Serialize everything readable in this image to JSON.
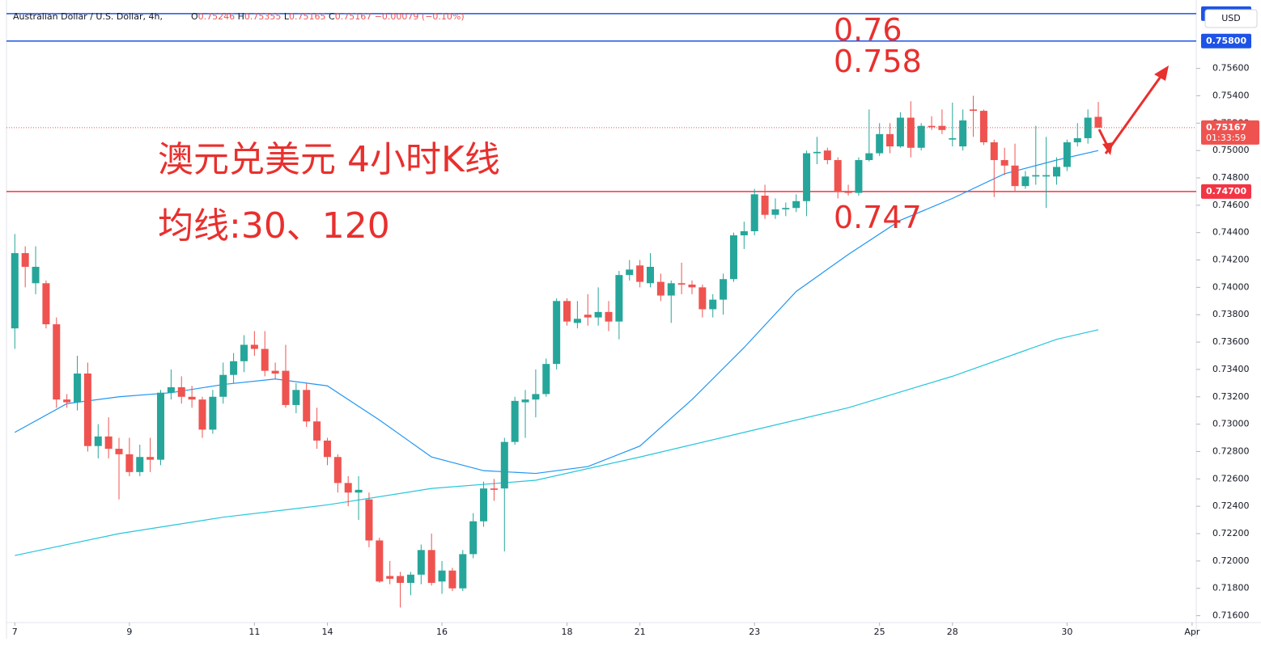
{
  "chart_data": {
    "type": "candlestick",
    "header": {
      "symbol": "Australian Dollar / U.S. Dollar, 4h,",
      "ohlc": [
        {
          "key": "O",
          "value": "0.75246"
        },
        {
          "key": "H",
          "value": "0.75355"
        },
        {
          "key": "L",
          "value": "0.75165"
        },
        {
          "key": "C",
          "value": "0.75167"
        }
      ],
      "change": "−0.00079 (−0.10%)"
    },
    "currency": "USD",
    "annotations": [
      "澳元兑美元 4小时K线",
      "均线:30、120",
      "0.76",
      "0.758",
      "0.747"
    ],
    "up_color": "#26a69a",
    "down_color": "#ef5350",
    "open": [
      0.737,
      0.7425,
      0.7403,
      0.7403,
      0.7373,
      0.7318,
      0.7316,
      0.7337,
      0.7284,
      0.7291,
      0.7282,
      0.7278,
      0.7265,
      0.7276,
      0.7274,
      0.7323,
      0.7327,
      0.732,
      0.7318,
      0.7296,
      0.732,
      0.7336,
      0.7346,
      0.7358,
      0.7355,
      0.7339,
      0.7339,
      0.7314,
      0.7325,
      0.7302,
      0.7288,
      0.7276,
      0.7257,
      0.725,
      0.7245,
      0.7215,
      0.7189,
      0.7189,
      0.7184,
      0.719,
      0.7208,
      0.7185,
      0.7193,
      0.718,
      0.7205,
      0.7229,
      0.7253,
      0.7253,
      0.7287,
      0.7316,
      0.7318,
      0.7322,
      0.7344,
      0.739,
      0.7374,
      0.738,
      0.7378,
      0.7382,
      0.7375,
      0.7409,
      0.7416,
      0.7403,
      0.7404,
      0.7394,
      0.7403,
      0.7402,
      0.74,
      0.7384,
      0.7391,
      0.7406,
      0.7438,
      0.7441,
      0.7467,
      0.7453,
      0.7457,
      0.7458,
      0.7463,
      0.7498,
      0.75,
      0.7493,
      0.747,
      0.7469,
      0.7493,
      0.7498,
      0.7512,
      0.7503,
      0.7524,
      0.7502,
      0.7518,
      0.7518,
      0.7508,
      0.7503,
      0.753,
      0.7529,
      0.7506,
      0.7493,
      0.7489,
      0.7474,
      0.7481,
      0.7481,
      0.7481,
      0.7488,
      0.7506,
      0.7509,
      0.75246
    ],
    "high": [
      0.7439,
      0.743,
      0.743,
      0.7405,
      0.7378,
      0.7322,
      0.735,
      0.7345,
      0.73,
      0.7305,
      0.729,
      0.729,
      0.7285,
      0.729,
      0.7325,
      0.734,
      0.7335,
      0.7328,
      0.732,
      0.7325,
      0.7345,
      0.7352,
      0.7365,
      0.7368,
      0.7368,
      0.7345,
      0.7358,
      0.733,
      0.733,
      0.7312,
      0.729,
      0.7278,
      0.7262,
      0.7262,
      0.725,
      0.7217,
      0.72,
      0.7192,
      0.7192,
      0.7212,
      0.722,
      0.72,
      0.7195,
      0.7208,
      0.7235,
      0.7258,
      0.726,
      0.729,
      0.732,
      0.7325,
      0.734,
      0.7348,
      0.7392,
      0.7392,
      0.739,
      0.7395,
      0.74,
      0.739,
      0.7412,
      0.742,
      0.742,
      0.7425,
      0.741,
      0.7405,
      0.7418,
      0.7405,
      0.7402,
      0.7395,
      0.741,
      0.744,
      0.7448,
      0.7472,
      0.7475,
      0.7465,
      0.7462,
      0.7468,
      0.75,
      0.751,
      0.7502,
      0.7495,
      0.7475,
      0.7495,
      0.753,
      0.752,
      0.752,
      0.7528,
      0.7536,
      0.752,
      0.7525,
      0.753,
      0.7535,
      0.753,
      0.754,
      0.753,
      0.7508,
      0.7502,
      0.7505,
      0.7485,
      0.7518,
      0.751,
      0.7495,
      0.7508,
      0.752,
      0.753,
      0.75355
    ],
    "low": [
      0.7355,
      0.74,
      0.7395,
      0.737,
      0.7312,
      0.7312,
      0.731,
      0.728,
      0.7275,
      0.7275,
      0.7245,
      0.7262,
      0.7262,
      0.7265,
      0.727,
      0.7318,
      0.7315,
      0.7312,
      0.729,
      0.7293,
      0.7315,
      0.733,
      0.7338,
      0.735,
      0.7335,
      0.7333,
      0.7312,
      0.7308,
      0.7298,
      0.7282,
      0.727,
      0.725,
      0.724,
      0.723,
      0.721,
      0.7184,
      0.7183,
      0.7166,
      0.7175,
      0.7183,
      0.7182,
      0.7176,
      0.7178,
      0.7178,
      0.7202,
      0.7225,
      0.7244,
      0.7207,
      0.7285,
      0.729,
      0.7305,
      0.732,
      0.734,
      0.7372,
      0.737,
      0.7372,
      0.7372,
      0.7368,
      0.7362,
      0.7405,
      0.74,
      0.74,
      0.739,
      0.7374,
      0.7395,
      0.7395,
      0.7378,
      0.7378,
      0.738,
      0.7404,
      0.7428,
      0.7438,
      0.745,
      0.745,
      0.7452,
      0.7455,
      0.7452,
      0.749,
      0.749,
      0.7465,
      0.7467,
      0.7467,
      0.7492,
      0.7496,
      0.7498,
      0.7502,
      0.7495,
      0.75,
      0.7515,
      0.7512,
      0.7503,
      0.75,
      0.751,
      0.7504,
      0.7466,
      0.7482,
      0.747,
      0.7472,
      0.7475,
      0.7458,
      0.7475,
      0.7485,
      0.7503,
      0.7505,
      0.75165
    ],
    "close": [
      0.7425,
      0.7415,
      0.7415,
      0.7373,
      0.7318,
      0.7316,
      0.7337,
      0.7284,
      0.7291,
      0.7282,
      0.7278,
      0.7265,
      0.7276,
      0.7274,
      0.7323,
      0.7327,
      0.732,
      0.7318,
      0.7296,
      0.732,
      0.7336,
      0.7346,
      0.7358,
      0.7355,
      0.7339,
      0.7337,
      0.7314,
      0.7325,
      0.7302,
      0.7288,
      0.7276,
      0.7257,
      0.725,
      0.7252,
      0.7215,
      0.7185,
      0.7187,
      0.7184,
      0.719,
      0.7208,
      0.7184,
      0.7193,
      0.718,
      0.7205,
      0.7229,
      0.7253,
      0.7252,
      0.7287,
      0.7317,
      0.7318,
      0.7322,
      0.7344,
      0.739,
      0.7375,
      0.7377,
      0.7378,
      0.7382,
      0.7375,
      0.7409,
      0.7413,
      0.7404,
      0.7415,
      0.7394,
      0.7403,
      0.7402,
      0.74,
      0.7384,
      0.7391,
      0.7406,
      0.7438,
      0.7441,
      0.7468,
      0.7453,
      0.7457,
      0.7458,
      0.7463,
      0.7498,
      0.7499,
      0.7493,
      0.747,
      0.7469,
      0.7493,
      0.7498,
      0.7512,
      0.7503,
      0.7524,
      0.7502,
      0.7518,
      0.7517,
      0.7515,
      0.7509,
      0.7522,
      0.7529,
      0.7506,
      0.7493,
      0.7489,
      0.7474,
      0.7481,
      0.7482,
      0.7482,
      0.7488,
      0.7506,
      0.7509,
      0.7524,
      0.75167
    ],
    "ma_lines": [
      {
        "color": "#2196f3",
        "x": [
          0,
          5,
          10,
          15,
          20,
          25,
          30,
          35,
          40,
          45,
          50,
          55,
          60,
          65,
          70,
          75,
          80,
          85,
          90,
          95,
          100,
          104
        ],
        "values": [
          0.7294,
          0.7315,
          0.732,
          0.7323,
          0.7329,
          0.7333,
          0.7328,
          0.7303,
          0.7276,
          0.7266,
          0.7264,
          0.7269,
          0.7284,
          0.7318,
          0.7356,
          0.7397,
          0.7424,
          0.7449,
          0.7465,
          0.7483,
          0.7493,
          0.75
        ]
      },
      {
        "color": "#26c6da",
        "x": [
          0,
          10,
          20,
          30,
          40,
          50,
          60,
          70,
          80,
          90,
          100,
          104
        ],
        "values": [
          0.7204,
          0.722,
          0.7232,
          0.7241,
          0.7253,
          0.7259,
          0.7276,
          0.7294,
          0.7312,
          0.7335,
          0.7362,
          0.7369
        ]
      }
    ],
    "levels": [
      {
        "value": 0.76,
        "color": "#1e53e5"
      },
      {
        "value": 0.758,
        "label": "0.75800",
        "color": "#1e53e5"
      },
      {
        "value": 0.747,
        "label": "0.74700",
        "color": "#f23645"
      }
    ],
    "last_price": {
      "value": 0.75167,
      "label": "0.75167",
      "countdown": "01:33:59"
    },
    "xlim": [
      -0.8,
      113.4
    ],
    "xticks": [
      {
        "value": 0,
        "label": "7"
      },
      {
        "value": 11,
        "label": "9"
      },
      {
        "value": 23,
        "label": "11"
      },
      {
        "value": 30,
        "label": "14"
      },
      {
        "value": 41,
        "label": "16"
      },
      {
        "value": 53,
        "label": "18"
      },
      {
        "value": 60,
        "label": "21"
      },
      {
        "value": 71,
        "label": "23"
      },
      {
        "value": 83,
        "label": "25"
      },
      {
        "value": 90,
        "label": "28"
      },
      {
        "value": 101,
        "label": "30"
      },
      {
        "value": 113,
        "label": "Apr"
      }
    ],
    "ylim": [
      0.7155,
      0.761
    ],
    "yticks": [
      {
        "value": 0.756,
        "label": "0.75600"
      },
      {
        "value": 0.754,
        "label": "0.75400"
      },
      {
        "value": 0.752,
        "label": "0.75200"
      },
      {
        "value": 0.75,
        "label": "0.75000"
      },
      {
        "value": 0.748,
        "label": "0.74800"
      },
      {
        "value": 0.746,
        "label": "0.74600"
      },
      {
        "value": 0.744,
        "label": "0.74400"
      },
      {
        "value": 0.742,
        "label": "0.74200"
      },
      {
        "value": 0.74,
        "label": "0.74000"
      },
      {
        "value": 0.738,
        "label": "0.73800"
      },
      {
        "value": 0.736,
        "label": "0.73600"
      },
      {
        "value": 0.734,
        "label": "0.73400"
      },
      {
        "value": 0.732,
        "label": "0.73200"
      },
      {
        "value": 0.73,
        "label": "0.73000"
      },
      {
        "value": 0.728,
        "label": "0.72800"
      },
      {
        "value": 0.726,
        "label": "0.72600"
      },
      {
        "value": 0.724,
        "label": "0.72400"
      },
      {
        "value": 0.722,
        "label": "0.72200"
      },
      {
        "value": 0.72,
        "label": "0.72000"
      },
      {
        "value": 0.718,
        "label": "0.71800"
      },
      {
        "value": 0.716,
        "label": "0.71600"
      }
    ],
    "grid": false
  }
}
